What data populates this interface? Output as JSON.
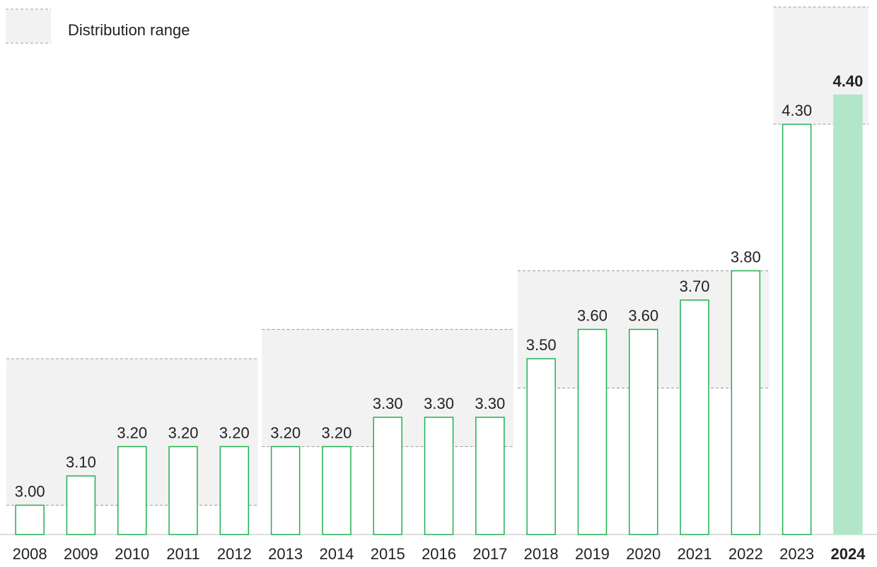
{
  "chart_data": {
    "type": "bar",
    "legend_label": "Distribution range",
    "categories": [
      "2008",
      "2009",
      "2010",
      "2011",
      "2012",
      "2013",
      "2014",
      "2015",
      "2016",
      "2017",
      "2018",
      "2019",
      "2020",
      "2021",
      "2022",
      "2023",
      "2024"
    ],
    "values": [
      3.0,
      3.1,
      3.2,
      3.2,
      3.2,
      3.2,
      3.2,
      3.3,
      3.3,
      3.3,
      3.5,
      3.6,
      3.6,
      3.7,
      3.8,
      4.3,
      4.4
    ],
    "value_labels": [
      "3.00",
      "3.10",
      "3.20",
      "3.20",
      "3.20",
      "3.20",
      "3.20",
      "3.30",
      "3.30",
      "3.30",
      "3.50",
      "3.60",
      "3.60",
      "3.70",
      "3.80",
      "4.30",
      "4.40"
    ],
    "color": "#1fb14f",
    "highlight_color": "#b2e6c8",
    "highlight_index": 16,
    "range_color": "#f2f2f2",
    "ranges": [
      {
        "start": 0,
        "end": 4,
        "low": 3.0,
        "high": 3.5
      },
      {
        "start": 5,
        "end": 9,
        "low": 3.2,
        "high": 3.6
      },
      {
        "start": 10,
        "end": 14,
        "low": 3.4,
        "high": 3.8
      },
      {
        "start": 15,
        "end": 16,
        "low": 4.3,
        "high": 4.7
      }
    ],
    "ylim": [
      2.9,
      4.7
    ]
  }
}
